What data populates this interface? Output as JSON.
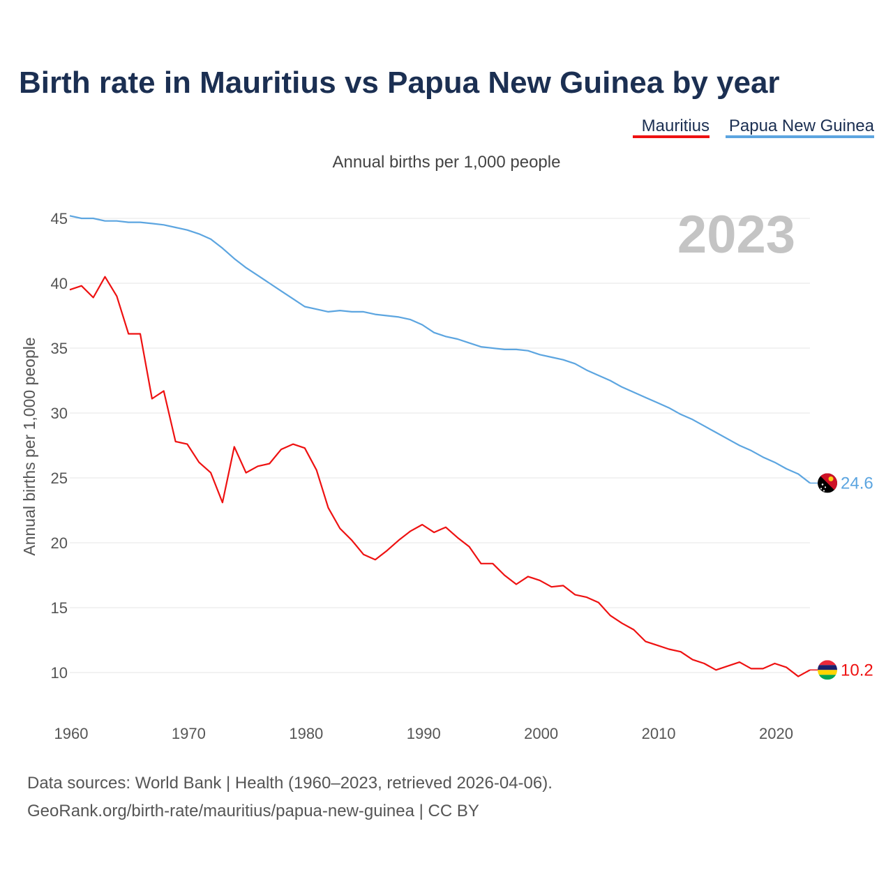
{
  "chart_data": {
    "type": "line",
    "title": "Birth rate in Mauritius vs Papua New Guinea by year",
    "subtitle": "Annual births per 1,000 people",
    "ylabel": "Annual births per 1,000 people",
    "xlabel": "",
    "xlim": [
      1960,
      2023
    ],
    "ylim": [
      7.5,
      46
    ],
    "yticks": [
      10,
      15,
      20,
      25,
      30,
      35,
      40,
      45
    ],
    "xticks": [
      1960,
      1970,
      1980,
      1990,
      2000,
      2010,
      2020
    ],
    "grid": true,
    "legend_position": "top-right",
    "highlight_year": "2023",
    "x": [
      1960,
      1961,
      1962,
      1963,
      1964,
      1965,
      1966,
      1967,
      1968,
      1969,
      1970,
      1971,
      1972,
      1973,
      1974,
      1975,
      1976,
      1977,
      1978,
      1979,
      1980,
      1981,
      1982,
      1983,
      1984,
      1985,
      1986,
      1987,
      1988,
      1989,
      1990,
      1991,
      1992,
      1993,
      1994,
      1995,
      1996,
      1997,
      1998,
      1999,
      2000,
      2001,
      2002,
      2003,
      2004,
      2005,
      2006,
      2007,
      2008,
      2009,
      2010,
      2011,
      2012,
      2013,
      2014,
      2015,
      2016,
      2017,
      2018,
      2019,
      2020,
      2021,
      2022,
      2023
    ],
    "series": [
      {
        "name": "Mauritius",
        "color": "#ee1111",
        "end_label": "10.2",
        "flag": "mauritius-flag-icon",
        "values": [
          39.5,
          39.8,
          38.9,
          40.5,
          39.0,
          36.1,
          36.1,
          31.1,
          31.7,
          27.8,
          27.6,
          26.2,
          25.4,
          23.1,
          27.4,
          25.4,
          25.9,
          26.1,
          27.2,
          27.6,
          27.3,
          25.6,
          22.7,
          21.1,
          20.2,
          19.1,
          18.7,
          19.4,
          20.2,
          20.9,
          21.4,
          20.8,
          21.2,
          20.4,
          19.7,
          18.4,
          18.4,
          17.5,
          16.8,
          17.4,
          17.1,
          16.6,
          16.7,
          16.0,
          15.8,
          15.4,
          14.4,
          13.8,
          13.3,
          12.4,
          12.1,
          11.8,
          11.6,
          11.0,
          10.7,
          10.2,
          10.5,
          10.8,
          10.3,
          10.3,
          10.7,
          10.4,
          9.7,
          10.2
        ]
      },
      {
        "name": "Papua New Guinea",
        "color": "#5ca5e0",
        "end_label": "24.6",
        "flag": "papua-new-guinea-flag-icon",
        "values": [
          45.2,
          45.0,
          45.0,
          44.8,
          44.8,
          44.7,
          44.7,
          44.6,
          44.5,
          44.3,
          44.1,
          43.8,
          43.4,
          42.7,
          41.9,
          41.2,
          40.6,
          40.0,
          39.4,
          38.8,
          38.2,
          38.0,
          37.8,
          37.9,
          37.8,
          37.8,
          37.6,
          37.5,
          37.4,
          37.2,
          36.8,
          36.2,
          35.9,
          35.7,
          35.4,
          35.1,
          35.0,
          34.9,
          34.9,
          34.8,
          34.5,
          34.3,
          34.1,
          33.8,
          33.3,
          32.9,
          32.5,
          32.0,
          31.6,
          31.2,
          30.8,
          30.4,
          29.9,
          29.5,
          29.0,
          28.5,
          28.0,
          27.5,
          27.1,
          26.6,
          26.2,
          25.7,
          25.3,
          24.6
        ]
      }
    ]
  },
  "legend": {
    "mauritius_label": "Mauritius",
    "png_label": "Papua New Guinea"
  },
  "colors": {
    "title": "#1b2f52",
    "mauritius": "#ee1111",
    "papua_new_guinea": "#5ca5e0",
    "grid": "#e6e6e6",
    "watermark": "#c4c4c4"
  },
  "footer": {
    "source_line": "Data sources: World Bank | Health (1960–2023, retrieved 2026-04-06).",
    "url_line": "GeoRank.org/birth-rate/mauritius/papua-new-guinea | CC BY"
  }
}
